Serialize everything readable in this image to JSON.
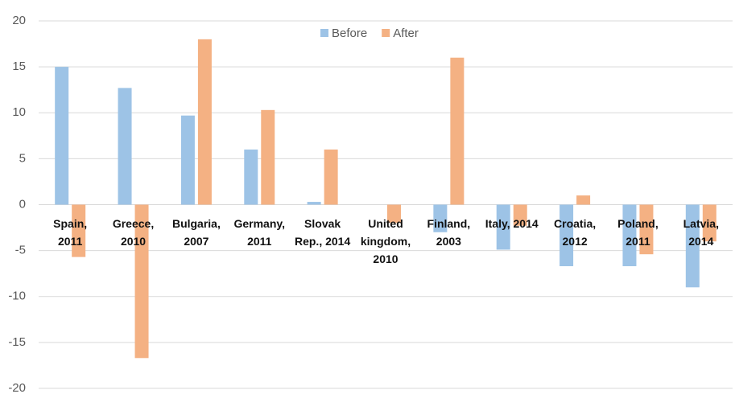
{
  "chart_data": {
    "type": "bar",
    "categories": [
      "Spain, 2011",
      "Greece, 2010",
      "Bulgaria, 2007",
      "Germany, 2011",
      "Slovak Rep., 2014",
      "United kingdom, 2010",
      "Finland, 2003",
      "Italy, 2014",
      "Croatia, 2012",
      "Poland, 2011",
      "Latvia, 2014"
    ],
    "series": [
      {
        "name": "Before",
        "color": "#9dc3e6",
        "values": [
          15,
          12.7,
          9.7,
          6,
          0.3,
          0,
          -3,
          -4.9,
          -6.7,
          -6.7,
          -9
        ]
      },
      {
        "name": "After",
        "color": "#f4b183",
        "values": [
          -5.7,
          -16.7,
          18,
          10.3,
          6,
          -2,
          16,
          -2.3,
          1,
          -5.4,
          -4
        ]
      }
    ],
    "ylim": [
      -20,
      20
    ],
    "yticks": [
      -20,
      -15,
      -10,
      -5,
      0,
      5,
      10,
      15,
      20
    ],
    "grid": true,
    "legend": "top"
  }
}
